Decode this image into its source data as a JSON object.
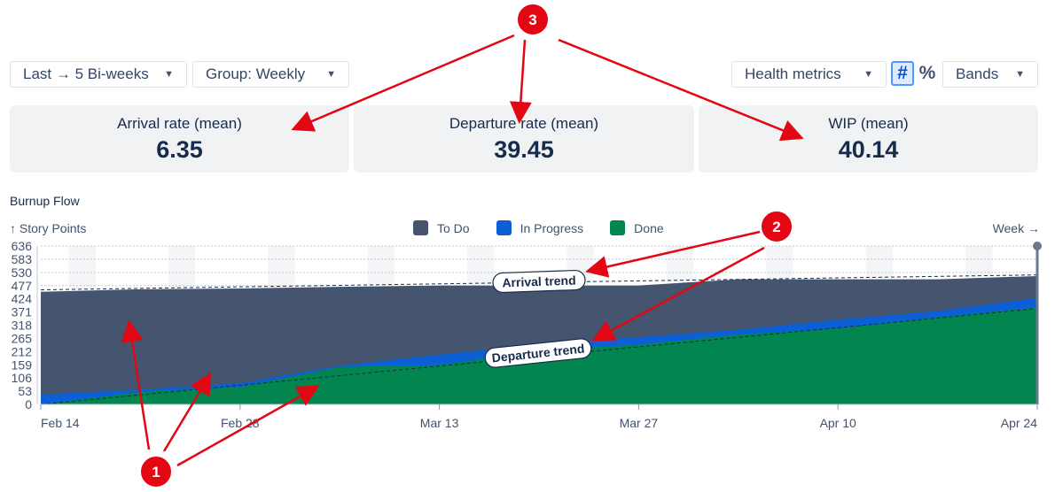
{
  "toolbar": {
    "range_label": "Last → 5 Bi-weeks",
    "group_label": "Group: Weekly",
    "health_label": "Health metrics",
    "hash_icon": "#",
    "percent_icon": "%",
    "bands_label": "Bands",
    "chevron": "⌄"
  },
  "metrics": [
    {
      "label": "Arrival rate (mean)",
      "value": "6.35"
    },
    {
      "label": "Departure rate (mean)",
      "value": "39.45"
    },
    {
      "label": "WIP (mean)",
      "value": "40.14"
    }
  ],
  "colors": {
    "todo": "#455570",
    "in_progress": "#0c5fd4",
    "done": "#02854f",
    "annotation_red": "#e30613"
  },
  "chart_data": {
    "type": "area",
    "title": "Burnup Flow",
    "ylabel": "↑ Story Points",
    "xlabel": "Week →",
    "ylim": [
      0,
      636
    ],
    "y_ticks": [
      0,
      53,
      106,
      159,
      212,
      265,
      318,
      371,
      424,
      477,
      530,
      583,
      636
    ],
    "x_ticks": [
      "Feb 14",
      "Feb 28",
      "Mar 13",
      "Mar 27",
      "Apr 10",
      "Apr 24"
    ],
    "x_tick_positions": [
      0,
      2,
      4,
      6,
      8,
      10
    ],
    "x": [
      0,
      1,
      2,
      3,
      4,
      5,
      6,
      7,
      8,
      9,
      10
    ],
    "series": [
      {
        "name": "Done",
        "values": [
          0,
          50,
          70,
          150,
          158,
          215,
          240,
          280,
          305,
          350,
          390
        ]
      },
      {
        "name": "In Progress",
        "values": [
          40,
          60,
          85,
          155,
          200,
          240,
          270,
          300,
          340,
          375,
          428
        ]
      },
      {
        "name": "To Do",
        "values": [
          455,
          465,
          468,
          475,
          480,
          480,
          480,
          505,
          505,
          505,
          518
        ]
      }
    ],
    "trends": [
      {
        "name": "Arrival trend",
        "start": 460,
        "end": 520
      },
      {
        "name": "Departure trend",
        "start": 0,
        "end": 385
      }
    ],
    "legend_position": "top-center",
    "grid": true
  },
  "annotations": [
    {
      "number": "1"
    },
    {
      "number": "2"
    },
    {
      "number": "3"
    }
  ]
}
